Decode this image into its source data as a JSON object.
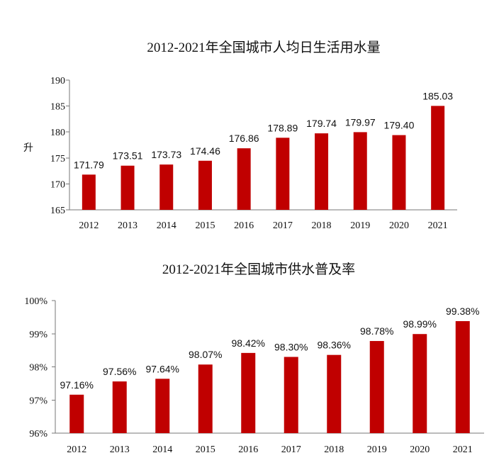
{
  "chart_data": [
    {
      "type": "bar",
      "title": "2012-2021年全国城市人均日生活用水量",
      "xlabel": "",
      "ylabel": "升",
      "categories": [
        "2012",
        "2013",
        "2014",
        "2015",
        "2016",
        "2017",
        "2018",
        "2019",
        "2020",
        "2021"
      ],
      "values": [
        171.79,
        173.51,
        173.73,
        174.46,
        176.86,
        178.89,
        179.74,
        179.97,
        179.4,
        185.03
      ],
      "value_labels": [
        "171.79",
        "173.51",
        "173.73",
        "174.46",
        "176.86",
        "178.89",
        "179.74",
        "179.97",
        "179.40",
        "185.03"
      ],
      "ylim": [
        165,
        190
      ],
      "yticks": [
        "165",
        "170",
        "175",
        "180",
        "185",
        "190"
      ],
      "bar_color": "#C00000",
      "grid": false
    },
    {
      "type": "bar",
      "title": "2012-2021年全国城市供水普及率",
      "xlabel": "",
      "ylabel": "",
      "categories": [
        "2012",
        "2013",
        "2014",
        "2015",
        "2016",
        "2017",
        "2018",
        "2019",
        "2020",
        "2021"
      ],
      "values": [
        97.16,
        97.56,
        97.64,
        98.07,
        98.42,
        98.3,
        98.36,
        98.78,
        98.99,
        99.38
      ],
      "value_labels": [
        "97.16%",
        "97.56%",
        "97.64%",
        "98.07%",
        "98.42%",
        "98.30%",
        "98.36%",
        "98.78%",
        "98.99%",
        "99.38%"
      ],
      "ylim": [
        96,
        100
      ],
      "yticks": [
        "96%",
        "97%",
        "98%",
        "99%",
        "100%"
      ],
      "bar_color": "#C00000",
      "grid": false
    }
  ]
}
